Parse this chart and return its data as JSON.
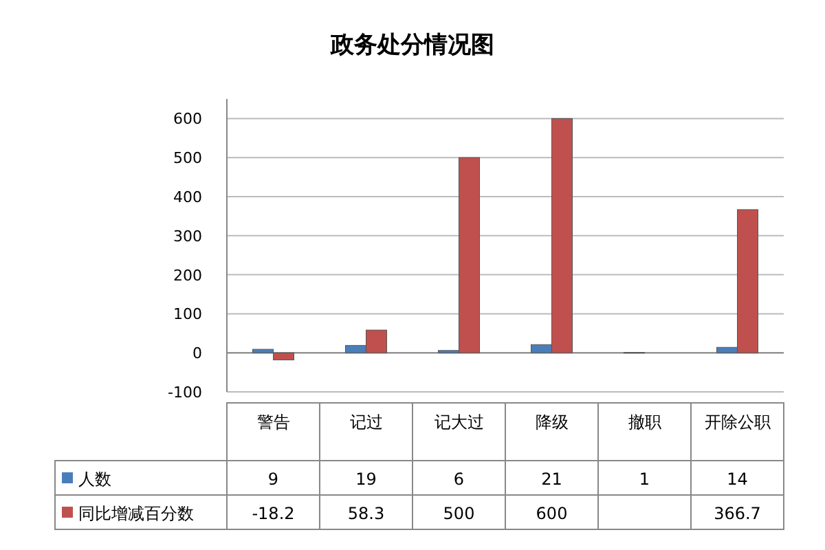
{
  "chart_data": {
    "type": "bar",
    "title": "政务处分情况图",
    "categories": [
      "警告",
      "记过",
      "记大过",
      "降级",
      "撤职",
      "开除公职"
    ],
    "series": [
      {
        "name": "人数",
        "color": "#4a7ebb",
        "values": [
          9,
          19,
          6,
          21,
          1,
          14
        ]
      },
      {
        "name": "同比增减百分数",
        "color": "#c0504d",
        "values": [
          -18.2,
          58.3,
          500,
          600,
          null,
          366.7
        ]
      }
    ],
    "ylim": [
      -100,
      650
    ],
    "yticks": [
      -100,
      0,
      100,
      200,
      300,
      400,
      500,
      600
    ],
    "grid": "y",
    "data_labels": true,
    "legend": "bottom left"
  }
}
